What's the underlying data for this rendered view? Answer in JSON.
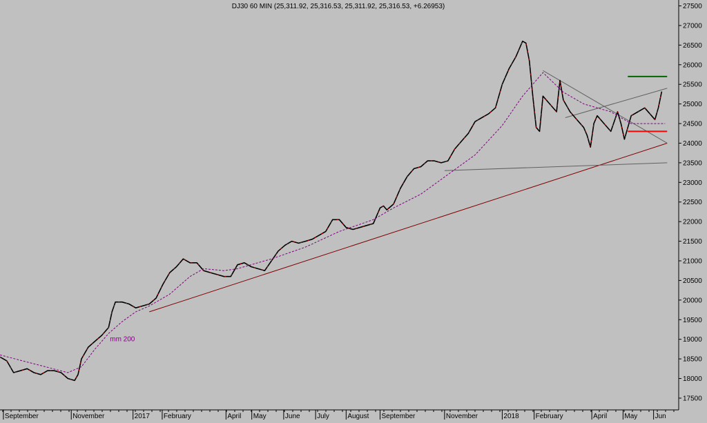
{
  "chart_data": {
    "type": "line",
    "title": "DJ30 60 MIN (25,311.92, 25,316.53, 25,311.92, 25,316.53, +6.26953)",
    "ylim": [
      17200,
      27650
    ],
    "y_ticks": [
      17500,
      18000,
      18500,
      19000,
      19500,
      20000,
      20500,
      21000,
      21500,
      22000,
      22500,
      23000,
      23500,
      24000,
      24500,
      25000,
      25500,
      26000,
      26500,
      27000,
      27500
    ],
    "x_labels": [
      {
        "label": "September",
        "t": 0.005
      },
      {
        "label": "November",
        "t": 0.105
      },
      {
        "label": "2017",
        "t": 0.196
      },
      {
        "label": "February",
        "t": 0.239
      },
      {
        "label": "April",
        "t": 0.333
      },
      {
        "label": "May",
        "t": 0.371
      },
      {
        "label": "June",
        "t": 0.418
      },
      {
        "label": "July",
        "t": 0.465
      },
      {
        "label": "August",
        "t": 0.51
      },
      {
        "label": "September",
        "t": 0.56
      },
      {
        "label": "November",
        "t": 0.655
      },
      {
        "label": "2018",
        "t": 0.74
      },
      {
        "label": "February",
        "t": 0.787
      },
      {
        "label": "April",
        "t": 0.872
      },
      {
        "label": "May",
        "t": 0.918
      },
      {
        "label": "Jun",
        "t": 0.963
      }
    ],
    "grid": false,
    "series": [
      {
        "name": "",
        "color": "#000000",
        "highlight": "#ff0000",
        "x": [
          0,
          0.01,
          0.02,
          0.03,
          0.04,
          0.05,
          0.06,
          0.07,
          0.08,
          0.09,
          0.1,
          0.11,
          0.115,
          0.12,
          0.13,
          0.14,
          0.15,
          0.16,
          0.165,
          0.17,
          0.18,
          0.19,
          0.2,
          0.21,
          0.22,
          0.23,
          0.24,
          0.25,
          0.26,
          0.27,
          0.28,
          0.29,
          0.3,
          0.31,
          0.32,
          0.33,
          0.34,
          0.35,
          0.36,
          0.37,
          0.38,
          0.39,
          0.4,
          0.41,
          0.42,
          0.43,
          0.44,
          0.45,
          0.46,
          0.47,
          0.48,
          0.49,
          0.5,
          0.51,
          0.52,
          0.53,
          0.54,
          0.55,
          0.56,
          0.565,
          0.57,
          0.58,
          0.59,
          0.6,
          0.61,
          0.62,
          0.63,
          0.64,
          0.65,
          0.66,
          0.67,
          0.68,
          0.69,
          0.7,
          0.71,
          0.72,
          0.73,
          0.74,
          0.75,
          0.76,
          0.77,
          0.775,
          0.78,
          0.785,
          0.79,
          0.795,
          0.8,
          0.81,
          0.82,
          0.825,
          0.83,
          0.84,
          0.85,
          0.86,
          0.865,
          0.87,
          0.875,
          0.88,
          0.89,
          0.9,
          0.91,
          0.915,
          0.92,
          0.93,
          0.94,
          0.95,
          0.96,
          0.965,
          0.97,
          0.975
        ],
        "y": [
          18550,
          18450,
          18150,
          18200,
          18250,
          18150,
          18100,
          18200,
          18200,
          18150,
          18000,
          17950,
          18100,
          18500,
          18800,
          18950,
          19100,
          19300,
          19700,
          19950,
          19950,
          19900,
          19800,
          19850,
          19900,
          20050,
          20400,
          20700,
          20850,
          21050,
          20950,
          20950,
          20750,
          20700,
          20650,
          20600,
          20600,
          20900,
          20950,
          20850,
          20800,
          20750,
          21000,
          21250,
          21400,
          21500,
          21450,
          21500,
          21550,
          21650,
          21750,
          22050,
          22050,
          21850,
          21800,
          21850,
          21900,
          21950,
          22350,
          22400,
          22300,
          22450,
          22850,
          23150,
          23350,
          23400,
          23550,
          23550,
          23500,
          23550,
          23850,
          24050,
          24250,
          24550,
          24650,
          24750,
          24900,
          25500,
          25900,
          26200,
          26600,
          26550,
          26100,
          25200,
          24400,
          24300,
          25200,
          25000,
          24800,
          25600,
          25100,
          24800,
          24600,
          24400,
          24200,
          23900,
          24500,
          24700,
          24500,
          24300,
          24800,
          24500,
          24100,
          24700,
          24800,
          24900,
          24700,
          24600,
          24900,
          25316.53
        ]
      },
      {
        "name": "mm 200",
        "color": "#800080",
        "dashed": true,
        "x": [
          0,
          0.1,
          0.12,
          0.14,
          0.16,
          0.18,
          0.2,
          0.22,
          0.25,
          0.28,
          0.3,
          0.33,
          0.35,
          0.38,
          0.4,
          0.45,
          0.5,
          0.55,
          0.58,
          0.62,
          0.66,
          0.7,
          0.74,
          0.77,
          0.8,
          0.83,
          0.86,
          0.9,
          0.93,
          0.96,
          0.98
        ],
        "y": [
          18600,
          18150,
          18300,
          18750,
          19150,
          19450,
          19700,
          19850,
          20150,
          20600,
          20800,
          20750,
          20800,
          20950,
          21050,
          21350,
          21750,
          22050,
          22350,
          22700,
          23200,
          23700,
          24450,
          25200,
          25800,
          25300,
          25000,
          24800,
          24500,
          24500,
          24500
        ]
      }
    ],
    "trendlines": [
      {
        "x": [
          0.22,
          0.983
        ],
        "y": [
          19700,
          24000
        ],
        "color": "#800000"
      },
      {
        "x": [
          0.655,
          0.983
        ],
        "y": [
          23300,
          23500
        ],
        "color": "#606060"
      },
      {
        "x": [
          0.8,
          0.983
        ],
        "y": [
          25850,
          24000
        ],
        "color": "#606060"
      },
      {
        "x": [
          0.833,
          0.983
        ],
        "y": [
          24650,
          25400
        ],
        "color": "#606060"
      }
    ],
    "levels": [
      {
        "y": 25700,
        "x": [
          0.925,
          0.983
        ],
        "color": "#006400"
      },
      {
        "y": 24300,
        "x": [
          0.925,
          0.983
        ],
        "color": "#ff0000"
      }
    ],
    "annotations": [
      {
        "text": "mm 200",
        "x": 0.162,
        "y": 18950,
        "color": "#800080"
      }
    ]
  }
}
